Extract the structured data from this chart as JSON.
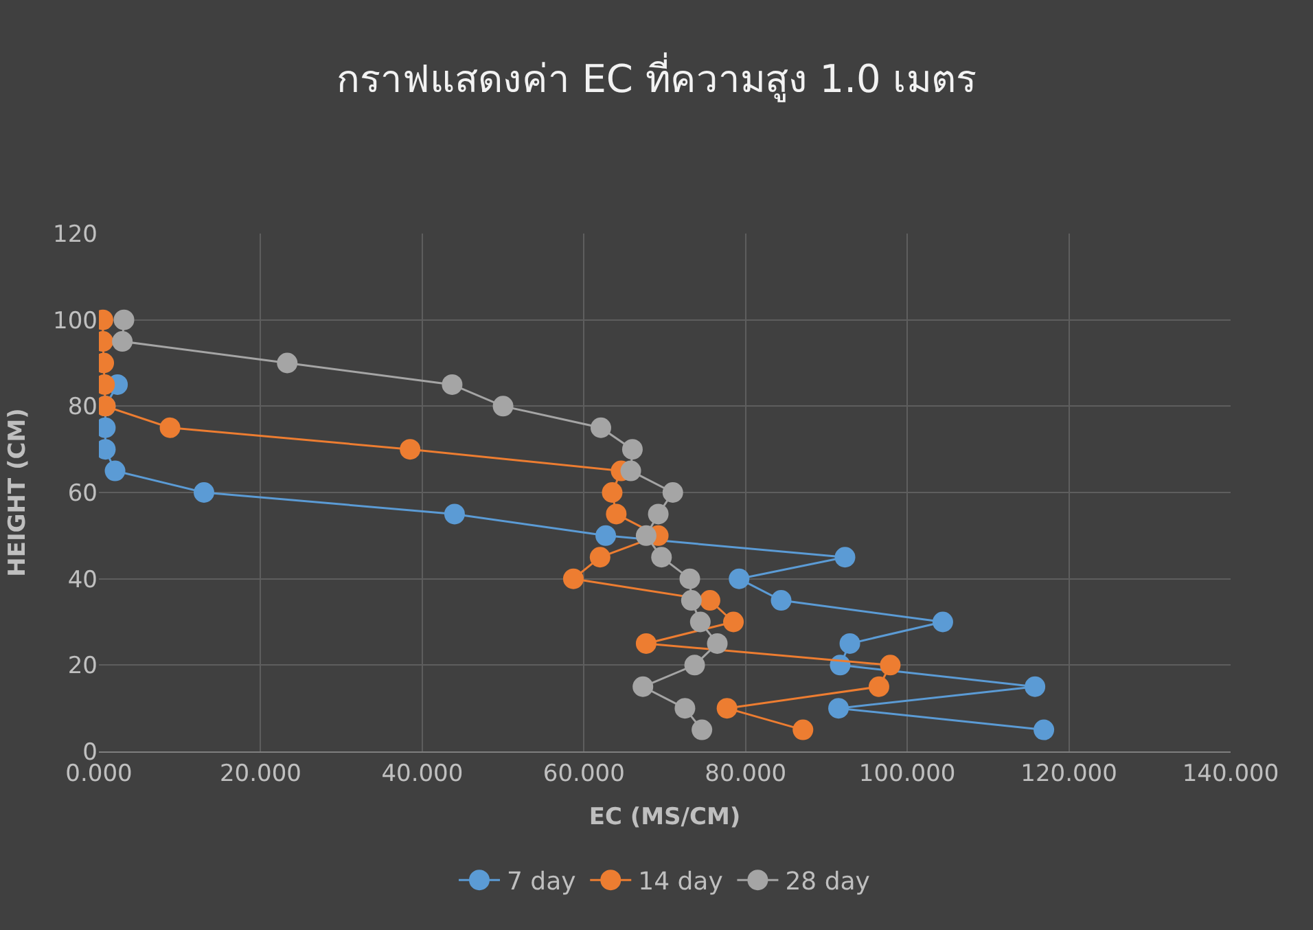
{
  "chart_data": {
    "type": "line",
    "title": "กราฟแสดงค่า EC ที่ความสูง 1.0 เมตร",
    "xlabel": "EC (MS/CM)",
    "ylabel": "HEIGHT (CM)",
    "xlim": [
      0,
      140
    ],
    "xticks": [
      {
        "value": 0,
        "label": "0.000"
      },
      {
        "value": 20,
        "label": "20.000"
      },
      {
        "value": 40,
        "label": "40.000"
      },
      {
        "value": 60,
        "label": "60.000"
      },
      {
        "value": 80,
        "label": "80.000"
      },
      {
        "value": 100,
        "label": "100.000"
      },
      {
        "value": 120,
        "label": "120.000"
      },
      {
        "value": 140,
        "label": "140.000"
      }
    ],
    "ylim": [
      0,
      120
    ],
    "yticks": [
      0,
      20,
      40,
      60,
      80,
      100,
      120
    ],
    "grid": true,
    "legend": "bottom",
    "marker": "circle",
    "line_style": "solid",
    "series": [
      {
        "name": "7 day",
        "color": "#5b9bd5",
        "x": [
          null,
          null,
          null,
          2.3,
          0.8,
          0.8,
          0.8,
          2,
          13,
          44,
          62.7,
          92.3,
          79.2,
          84.4,
          104.4,
          92.9,
          91.7,
          115.8,
          91.5,
          116.9
        ],
        "values": [
          null,
          null,
          null,
          85,
          80,
          75,
          70,
          65,
          60,
          55,
          50,
          45,
          40,
          35,
          30,
          25,
          20,
          15,
          10,
          5
        ]
      },
      {
        "name": "14 day",
        "color": "#ed7d31",
        "x": [
          0.5,
          0.5,
          0.6,
          0.7,
          0.8,
          8.8,
          38.5,
          64.6,
          63.5,
          64,
          69.2,
          62,
          58.7,
          75.6,
          78.5,
          67.7,
          97.9,
          96.5,
          77.7,
          87.1
        ],
        "values": [
          100,
          95,
          90,
          85,
          80,
          75,
          70,
          65,
          60,
          55,
          50,
          45,
          40,
          35,
          30,
          25,
          20,
          15,
          10,
          5
        ]
      },
      {
        "name": "28 day",
        "color": "#a5a5a5",
        "x": [
          3.1,
          2.9,
          23.3,
          43.7,
          50,
          62.1,
          66,
          65.8,
          71,
          69.2,
          67.7,
          69.6,
          73.1,
          73.3,
          74.4,
          76.5,
          73.7,
          67.3,
          72.5,
          74.6
        ],
        "values": [
          100,
          95,
          90,
          85,
          80,
          75,
          70,
          65,
          60,
          55,
          50,
          45,
          40,
          35,
          30,
          25,
          20,
          15,
          10,
          5
        ]
      }
    ]
  }
}
